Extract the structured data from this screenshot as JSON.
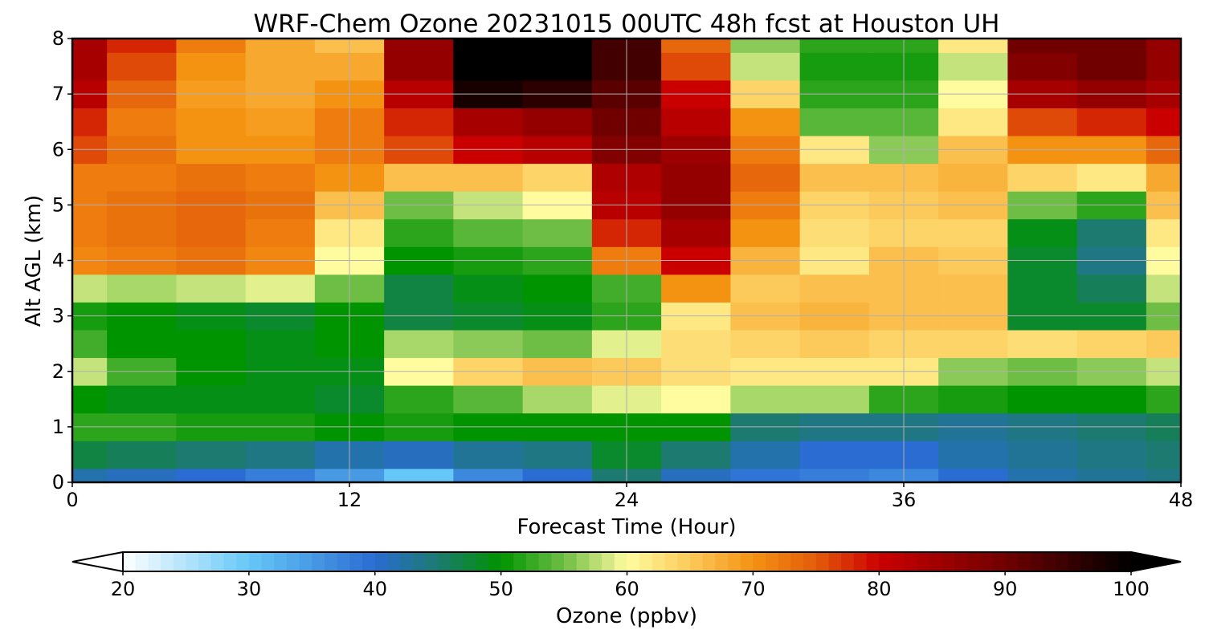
{
  "chart_data": {
    "type": "heatmap",
    "title": "WRF-Chem Ozone  20231015 00UTC 48h fcst at Houston UH",
    "xlabel": "Forecast Time (Hour)",
    "ylabel": "Alt AGL (km)",
    "xlim": [
      0,
      48
    ],
    "ylim": [
      0,
      8
    ],
    "xticks": [
      0,
      12,
      24,
      36,
      48
    ],
    "yticks": [
      0,
      1,
      2,
      3,
      4,
      5,
      6,
      7,
      8
    ],
    "grid": true,
    "x": [
      0,
      3,
      6,
      9,
      12,
      15,
      18,
      21,
      24,
      27,
      30,
      33,
      36,
      39,
      42,
      45,
      48
    ],
    "y": [
      0,
      0.5,
      1,
      1.5,
      2,
      2.5,
      3,
      3.5,
      4,
      4.5,
      5,
      5.5,
      6,
      6.5,
      7,
      7.5,
      8
    ],
    "z": [
      [
        42,
        41,
        40,
        38,
        35,
        30,
        37,
        40,
        45,
        41,
        39,
        38,
        37,
        40,
        42,
        43,
        44
      ],
      [
        47,
        46,
        45,
        44,
        42,
        41,
        43,
        44,
        48,
        45,
        42,
        40,
        40,
        42,
        43,
        44,
        45
      ],
      [
        52,
        52,
        51,
        51,
        50,
        51,
        50,
        50,
        50,
        50,
        45,
        44,
        44,
        43,
        44,
        45,
        46
      ],
      [
        50,
        49,
        49,
        49,
        48,
        52,
        54,
        57,
        59,
        60,
        57,
        57,
        52,
        51,
        50,
        50,
        52
      ],
      [
        58,
        53,
        50,
        49,
        49,
        60,
        64,
        66,
        65,
        63,
        62,
        62,
        62,
        56,
        55,
        56,
        58
      ],
      [
        53,
        50,
        50,
        49,
        50,
        57,
        56,
        55,
        59,
        63,
        64,
        65,
        64,
        64,
        63,
        64,
        65
      ],
      [
        51,
        50,
        49,
        48,
        50,
        47,
        48,
        49,
        52,
        62,
        66,
        67,
        66,
        66,
        48,
        48,
        55
      ],
      [
        58,
        57,
        58,
        59,
        55,
        47,
        49,
        50,
        53,
        70,
        65,
        66,
        66,
        66,
        48,
        46,
        58
      ],
      [
        71,
        72,
        73,
        71,
        60,
        50,
        51,
        52,
        72,
        80,
        67,
        62,
        66,
        65,
        48,
        44,
        60
      ],
      [
        72,
        73,
        74,
        72,
        62,
        52,
        54,
        55,
        78,
        84,
        70,
        63,
        64,
        64,
        49,
        45,
        62
      ],
      [
        72,
        73,
        74,
        73,
        66,
        55,
        58,
        60,
        82,
        86,
        72,
        64,
        65,
        66,
        55,
        52,
        66
      ],
      [
        72,
        72,
        73,
        72,
        70,
        66,
        66,
        64,
        83,
        86,
        74,
        66,
        66,
        67,
        64,
        62,
        68
      ],
      [
        76,
        73,
        70,
        70,
        72,
        76,
        80,
        82,
        88,
        85,
        72,
        62,
        56,
        66,
        70,
        70,
        74
      ],
      [
        78,
        72,
        70,
        69,
        72,
        78,
        84,
        86,
        90,
        82,
        70,
        54,
        54,
        62,
        76,
        78,
        80
      ],
      [
        82,
        74,
        69,
        68,
        70,
        82,
        98,
        96,
        92,
        80,
        64,
        52,
        52,
        60,
        84,
        86,
        84
      ],
      [
        84,
        76,
        70,
        68,
        68,
        86,
        100,
        100,
        94,
        76,
        58,
        51,
        51,
        58,
        88,
        90,
        86
      ],
      [
        84,
        78,
        72,
        68,
        66,
        86,
        100,
        100,
        94,
        74,
        56,
        52,
        52,
        62,
        90,
        90,
        86
      ]
    ],
    "colorbar": {
      "label": "Ozone  (ppbv)",
      "min": 20,
      "max": 100,
      "ticks": [
        20,
        30,
        40,
        50,
        60,
        70,
        80,
        90,
        100
      ],
      "extend": "both",
      "stops": [
        {
          "v": 20,
          "c": "#ffffff"
        },
        {
          "v": 30,
          "c": "#66c8f8"
        },
        {
          "v": 40,
          "c": "#2a6cd2"
        },
        {
          "v": 45,
          "c": "#1c7a70"
        },
        {
          "v": 50,
          "c": "#009400"
        },
        {
          "v": 55,
          "c": "#6ebe46"
        },
        {
          "v": 60,
          "c": "#fffca0"
        },
        {
          "v": 65,
          "c": "#fcca5a"
        },
        {
          "v": 70,
          "c": "#f49212"
        },
        {
          "v": 75,
          "c": "#e45c0a"
        },
        {
          "v": 80,
          "c": "#ca0000"
        },
        {
          "v": 90,
          "c": "#700000"
        },
        {
          "v": 100,
          "c": "#000000"
        }
      ]
    }
  }
}
